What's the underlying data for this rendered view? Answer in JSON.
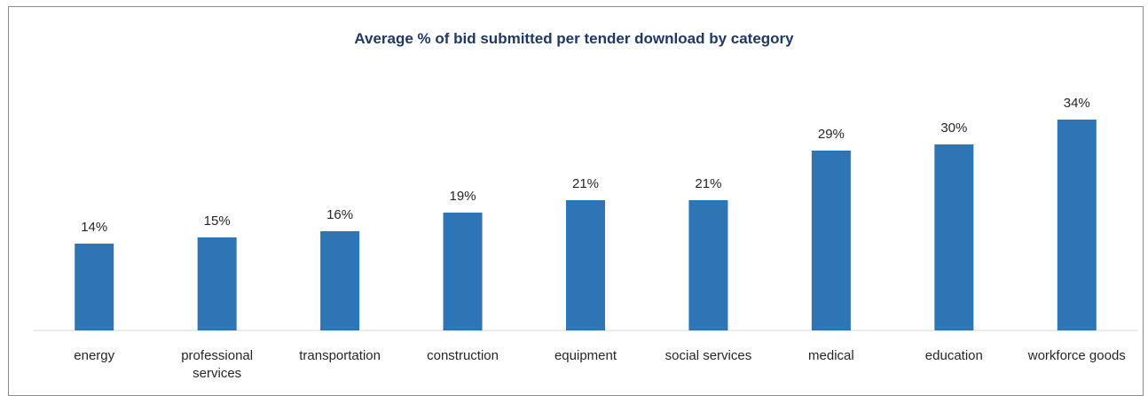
{
  "chart_data": {
    "type": "bar",
    "title": "Average % of bid submitted per tender download by category",
    "categories": [
      [
        "energy"
      ],
      [
        "professional",
        "services"
      ],
      [
        "transportation"
      ],
      [
        "construction"
      ],
      [
        "equipment"
      ],
      [
        "social services"
      ],
      [
        "medical"
      ],
      [
        "education"
      ],
      [
        "workforce goods"
      ]
    ],
    "values": [
      14,
      15,
      16,
      19,
      21,
      21,
      29,
      30,
      34
    ],
    "data_labels": [
      "14%",
      "15%",
      "16%",
      "19%",
      "21%",
      "21%",
      "29%",
      "30%",
      "34%"
    ],
    "unit": "%",
    "ylim": [
      0,
      40
    ],
    "grid": false,
    "legend": "none",
    "bar_color": "#2e75b6",
    "title_color": "#1f3864"
  }
}
